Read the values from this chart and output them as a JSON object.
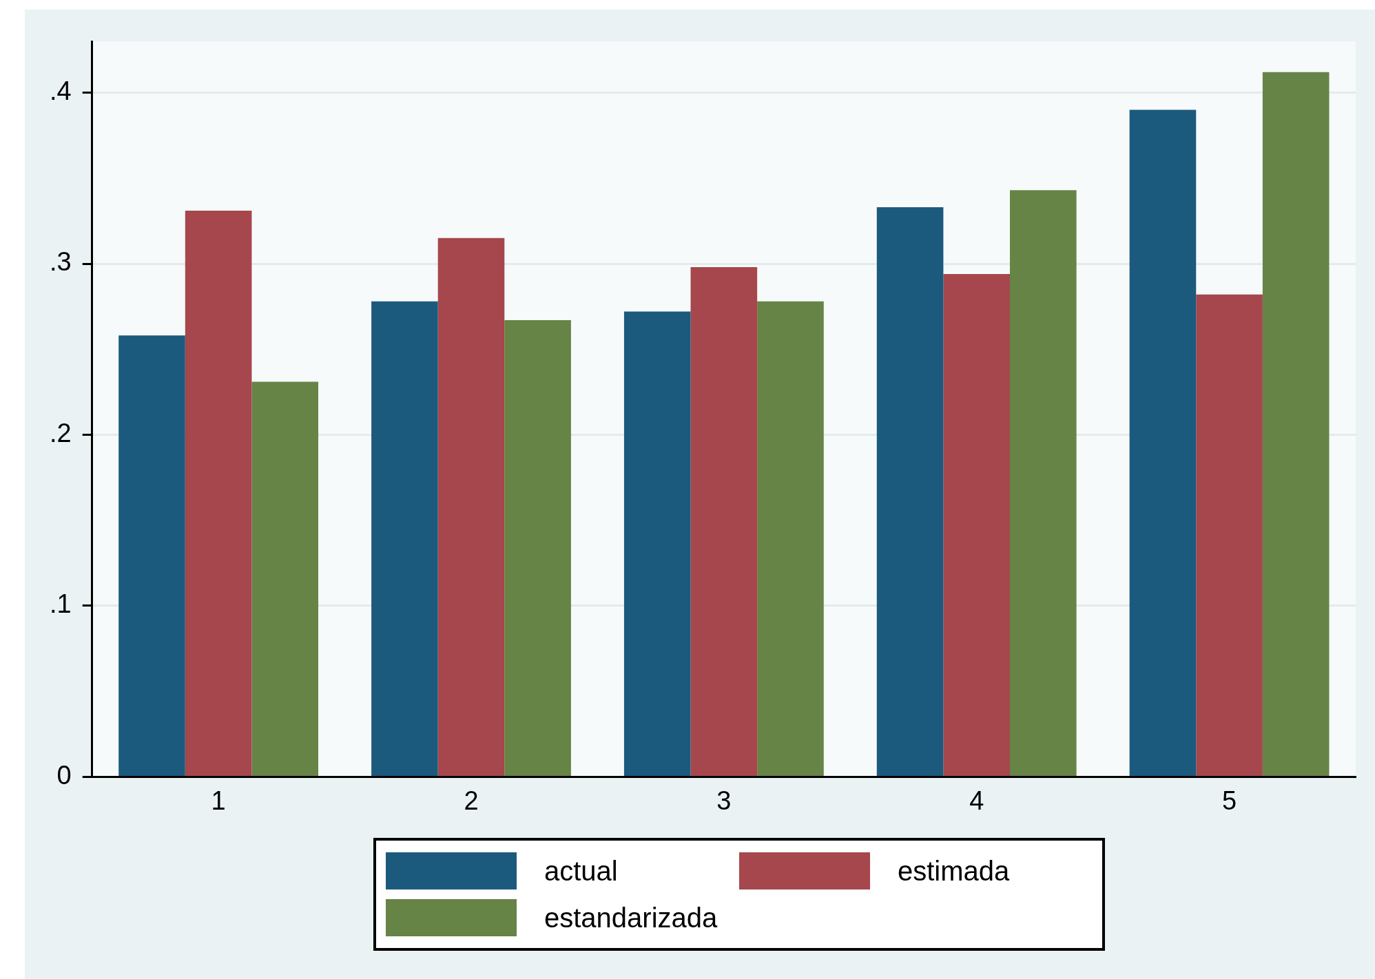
{
  "chart_data": {
    "type": "bar",
    "categories": [
      "1",
      "2",
      "3",
      "4",
      "5"
    ],
    "series": [
      {
        "name": "actual",
        "color": "#1c5a7d",
        "values": [
          0.258,
          0.278,
          0.272,
          0.333,
          0.39
        ]
      },
      {
        "name": "estimada",
        "color": "#a5474c",
        "values": [
          0.331,
          0.315,
          0.298,
          0.294,
          0.282
        ]
      },
      {
        "name": "estandarizada",
        "color": "#668446",
        "values": [
          0.231,
          0.267,
          0.278,
          0.343,
          0.412
        ]
      }
    ],
    "ylim": [
      0,
      0.43
    ],
    "yticks": [
      0,
      {
        "value": 0.1,
        "label": ".1"
      },
      {
        "value": 0.2,
        "label": ".2"
      },
      {
        "value": 0.3,
        "label": ".3"
      },
      {
        "value": 0.4,
        "label": ".4"
      }
    ],
    "grid": "y",
    "legend": "bottom"
  }
}
